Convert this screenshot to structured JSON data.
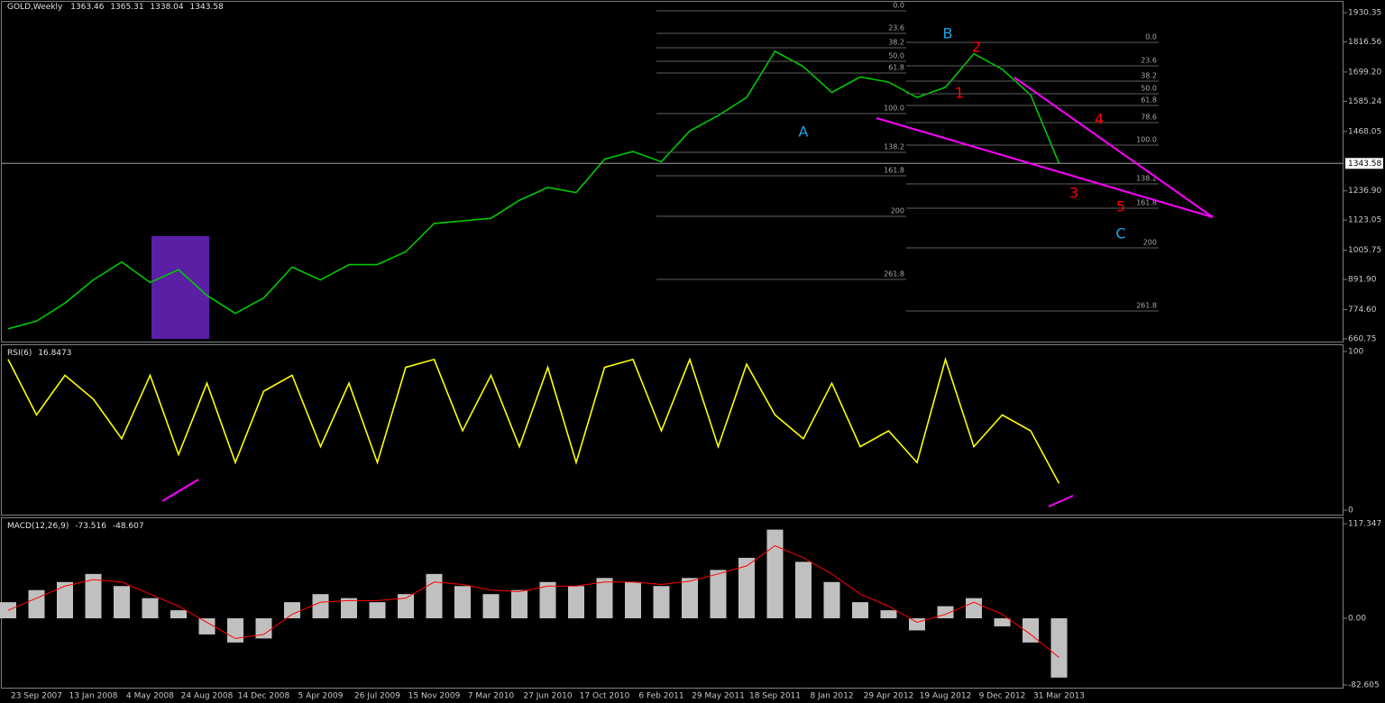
{
  "chart_data": [
    {
      "type": "line",
      "title": "GOLD,Weekly",
      "last_bar": {
        "open": 1363.46,
        "high": 1365.31,
        "low": 1338.04
      },
      "values": [
        700,
        730,
        800,
        890,
        960,
        880,
        930,
        830,
        760,
        820,
        940,
        890,
        950,
        950,
        1000,
        1110,
        1120,
        1130,
        1200,
        1250,
        1230,
        1360,
        1390,
        1350,
        1470,
        1530,
        1600,
        1780,
        1720,
        1620,
        1680,
        1660,
        1600,
        1640,
        1770,
        1710,
        1610,
        1343.58
      ],
      "color": "#00c800",
      "ylim": [
        646.7,
        1965.4
      ],
      "yticks": [
        1930.35,
        1816.56,
        {
          "value": 1699.2,
          "label": "1699.20"
        },
        1585.24,
        1468.05,
        {
          "value": 1236.9,
          "label": "1236.90"
        },
        1123.05,
        1005.75,
        {
          "value": 891.9,
          "label": "891.90"
        },
        {
          "value": 774.6,
          "label": "774.60"
        },
        660.75
      ],
      "fibonacci": [
        {
          "levels": [
            {
              "label": "0.0",
              "price": 1937.4
            },
            {
              "label": "23.6",
              "price": 1849.7
            },
            {
              "label": "38.2",
              "price": 1793.6
            },
            {
              "label": "50.0",
              "price": 1741
            },
            {
              "label": "61.8",
              "price": 1695.4
            },
            {
              "label": "100.0",
              "price": 1537.6
            },
            {
              "label": "138.2",
              "price": 1386.8
            },
            {
              "label": "161.8",
              "price": 1295.6
            },
            {
              "label": "200",
              "price": 1137.7
            },
            {
              "label": "261.8",
              "price": 892.3
            }
          ]
        },
        {
          "levels": [
            {
              "label": "0.0",
              "price": 1814.6
            },
            {
              "label": "23.6",
              "price": 1723.4
            },
            {
              "label": "38.2",
              "price": 1663.8
            },
            {
              "label": "50.0",
              "price": 1614.7
            },
            {
              "label": "61.8",
              "price": 1569.1
            },
            {
              "label": "78.6",
              "price": 1502.5
            },
            {
              "label": "100.0",
              "price": 1414.8
            },
            {
              "label": "138.2",
              "price": 1264
            },
            {
              "label": "161.8",
              "price": 1169.3
            },
            {
              "label": "200",
              "price": 1015
            },
            {
              "label": "261.8",
              "price": 769.5
            }
          ]
        }
      ],
      "waves": [
        {
          "text": "A",
          "color": "#1fa3e6"
        },
        {
          "text": "B",
          "color": "#1fa3e6"
        },
        {
          "text": "C",
          "color": "#1fa3e6"
        },
        {
          "text": "1",
          "color": "#ff0000"
        },
        {
          "text": "2",
          "color": "#ff0000"
        },
        {
          "text": "3",
          "color": "#ff0000"
        },
        {
          "text": "4",
          "color": "#ff0000"
        },
        {
          "text": "5",
          "color": "#ff0000"
        }
      ]
    },
    {
      "type": "line",
      "title": "RSI(6)",
      "values": [
        95,
        60,
        85,
        70,
        45,
        85,
        35,
        80,
        30,
        75,
        85,
        40,
        80,
        30,
        90,
        95,
        50,
        85,
        40,
        90,
        30,
        90,
        95,
        50,
        95,
        40,
        92,
        60,
        45,
        80,
        40,
        50,
        30,
        95,
        40,
        60,
        50,
        16.8473
      ],
      "color": "#ffff00",
      "ylim": [
        -3.4,
        103.4
      ],
      "yticks": [
        100,
        0
      ]
    },
    {
      "type": "bar",
      "title": "MACD(12,26,9)",
      "categories": [
        null,
        "23 Sep 2007",
        null,
        "13 Jan 2008",
        null,
        "4 May 2008",
        null,
        "24 Aug 2008",
        null,
        "14 Dec 2008",
        null,
        "5 Apr 2009",
        null,
        "26 Jul 2009",
        null,
        "15 Nov 2009",
        null,
        "7 Mar 2010",
        null,
        "27 Jun 2010",
        null,
        "17 Oct 2010",
        null,
        "6 Feb 2011",
        null,
        "29 May 2011",
        null,
        "18 Sep 2011",
        null,
        "8 Jan 2012",
        null,
        "29 Apr 2012",
        null,
        "19 Aug 2012",
        null,
        "9 Dec 2012",
        null,
        "31 Mar 2013"
      ],
      "values": [
        20,
        35,
        45,
        55,
        40,
        25,
        10,
        -20,
        -30,
        -25,
        20,
        30,
        25,
        20,
        30,
        55,
        40,
        30,
        35,
        45,
        40,
        50,
        45,
        40,
        50,
        60,
        75,
        110,
        70,
        45,
        20,
        10,
        -15,
        15,
        25,
        -10,
        -30,
        -73.516
      ],
      "signal": [
        10,
        25,
        40,
        48,
        45,
        30,
        15,
        -5,
        -25,
        -20,
        5,
        20,
        22,
        22,
        25,
        45,
        42,
        35,
        33,
        40,
        40,
        45,
        45,
        42,
        46,
        55,
        65,
        90,
        75,
        55,
        30,
        15,
        -5,
        5,
        20,
        5,
        -20,
        -48.607
      ],
      "color": "#c0c0c0",
      "signal_color": "#ff0000",
      "ylim": [
        -84.9,
        125.2
      ],
      "yticks": [
        117.347,
        {
          "value": 0,
          "label": "0.00"
        },
        -82.605
      ]
    }
  ]
}
